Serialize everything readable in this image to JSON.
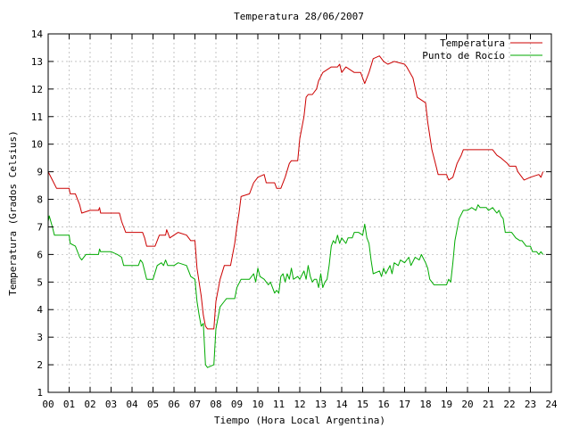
{
  "chart_data": {
    "type": "line",
    "title": "Temperatura 28/06/2007",
    "xlabel": "Tiempo (Hora Local Argentina)",
    "ylabel": "Temperatura (Grados Celsius)",
    "xlim": [
      0,
      24
    ],
    "ylim": [
      1,
      14
    ],
    "x_ticks": [
      "00",
      "01",
      "02",
      "03",
      "04",
      "05",
      "06",
      "07",
      "08",
      "09",
      "10",
      "11",
      "12",
      "13",
      "14",
      "15",
      "16",
      "17",
      "18",
      "19",
      "20",
      "21",
      "22",
      "23",
      "24"
    ],
    "y_ticks": [
      "1",
      "2",
      "3",
      "4",
      "5",
      "6",
      "7",
      "8",
      "9",
      "10",
      "11",
      "12",
      "13",
      "14"
    ],
    "grid": true,
    "legend_position": "top-right",
    "series": [
      {
        "name": "Temperatura",
        "color": "#cc0000",
        "points": [
          [
            0.0,
            9.0
          ],
          [
            0.2,
            8.7
          ],
          [
            0.4,
            8.4
          ],
          [
            1.0,
            8.4
          ],
          [
            1.05,
            8.2
          ],
          [
            1.3,
            8.2
          ],
          [
            1.5,
            7.8
          ],
          [
            1.6,
            7.5
          ],
          [
            2.0,
            7.6
          ],
          [
            2.4,
            7.6
          ],
          [
            2.45,
            7.7
          ],
          [
            2.5,
            7.5
          ],
          [
            3.0,
            7.5
          ],
          [
            3.4,
            7.5
          ],
          [
            3.5,
            7.2
          ],
          [
            3.6,
            7.0
          ],
          [
            3.7,
            6.8
          ],
          [
            4.0,
            6.8
          ],
          [
            4.5,
            6.8
          ],
          [
            4.6,
            6.6
          ],
          [
            4.7,
            6.3
          ],
          [
            5.0,
            6.3
          ],
          [
            5.1,
            6.3
          ],
          [
            5.2,
            6.5
          ],
          [
            5.3,
            6.7
          ],
          [
            5.6,
            6.7
          ],
          [
            5.65,
            6.9
          ],
          [
            5.8,
            6.6
          ],
          [
            6.0,
            6.7
          ],
          [
            6.2,
            6.8
          ],
          [
            6.6,
            6.7
          ],
          [
            6.8,
            6.5
          ],
          [
            7.0,
            6.5
          ],
          [
            7.1,
            5.5
          ],
          [
            7.3,
            4.5
          ],
          [
            7.4,
            3.8
          ],
          [
            7.5,
            3.4
          ],
          [
            7.6,
            3.3
          ],
          [
            7.9,
            3.3
          ],
          [
            8.0,
            4.3
          ],
          [
            8.2,
            5.1
          ],
          [
            8.4,
            5.6
          ],
          [
            8.7,
            5.6
          ],
          [
            8.9,
            6.4
          ],
          [
            9.0,
            7.0
          ],
          [
            9.1,
            7.5
          ],
          [
            9.2,
            8.1
          ],
          [
            9.6,
            8.2
          ],
          [
            9.8,
            8.6
          ],
          [
            10.0,
            8.8
          ],
          [
            10.3,
            8.9
          ],
          [
            10.4,
            8.6
          ],
          [
            10.8,
            8.6
          ],
          [
            10.9,
            8.4
          ],
          [
            11.1,
            8.4
          ],
          [
            11.3,
            8.8
          ],
          [
            11.5,
            9.3
          ],
          [
            11.6,
            9.4
          ],
          [
            11.9,
            9.4
          ],
          [
            12.0,
            10.2
          ],
          [
            12.2,
            11.0
          ],
          [
            12.3,
            11.7
          ],
          [
            12.4,
            11.8
          ],
          [
            12.6,
            11.8
          ],
          [
            12.8,
            12.0
          ],
          [
            12.9,
            12.3
          ],
          [
            13.1,
            12.6
          ],
          [
            13.5,
            12.8
          ],
          [
            13.8,
            12.8
          ],
          [
            13.9,
            12.9
          ],
          [
            14.0,
            12.6
          ],
          [
            14.2,
            12.8
          ],
          [
            14.6,
            12.6
          ],
          [
            14.9,
            12.6
          ],
          [
            15.0,
            12.4
          ],
          [
            15.1,
            12.2
          ],
          [
            15.3,
            12.6
          ],
          [
            15.5,
            13.1
          ],
          [
            15.8,
            13.2
          ],
          [
            16.0,
            13.0
          ],
          [
            16.2,
            12.9
          ],
          [
            16.5,
            13.0
          ],
          [
            17.0,
            12.9
          ],
          [
            17.1,
            12.8
          ],
          [
            17.4,
            12.4
          ],
          [
            17.6,
            11.7
          ],
          [
            17.8,
            11.6
          ],
          [
            18.0,
            11.5
          ],
          [
            18.1,
            10.8
          ],
          [
            18.3,
            9.8
          ],
          [
            18.5,
            9.2
          ],
          [
            18.6,
            8.9
          ],
          [
            19.0,
            8.9
          ],
          [
            19.1,
            8.7
          ],
          [
            19.3,
            8.8
          ],
          [
            19.5,
            9.3
          ],
          [
            19.7,
            9.6
          ],
          [
            19.8,
            9.8
          ],
          [
            20.0,
            9.8
          ],
          [
            21.2,
            9.8
          ],
          [
            21.4,
            9.6
          ],
          [
            21.6,
            9.5
          ],
          [
            21.9,
            9.3
          ],
          [
            22.0,
            9.2
          ],
          [
            22.3,
            9.2
          ],
          [
            22.4,
            9.0
          ],
          [
            22.6,
            8.8
          ],
          [
            22.7,
            8.7
          ],
          [
            23.0,
            8.8
          ],
          [
            23.4,
            8.9
          ],
          [
            23.5,
            8.8
          ],
          [
            23.6,
            9.0
          ]
        ]
      },
      {
        "name": "Punto de Rocío",
        "color": "#00aa00",
        "points": [
          [
            0.0,
            7.2
          ],
          [
            0.05,
            7.4
          ],
          [
            0.2,
            7.0
          ],
          [
            0.3,
            6.7
          ],
          [
            1.0,
            6.7
          ],
          [
            1.05,
            6.4
          ],
          [
            1.3,
            6.3
          ],
          [
            1.5,
            5.9
          ],
          [
            1.6,
            5.8
          ],
          [
            1.8,
            6.0
          ],
          [
            2.0,
            6.0
          ],
          [
            2.4,
            6.0
          ],
          [
            2.45,
            6.2
          ],
          [
            2.5,
            6.1
          ],
          [
            3.0,
            6.1
          ],
          [
            3.3,
            6.0
          ],
          [
            3.5,
            5.9
          ],
          [
            3.6,
            5.6
          ],
          [
            4.0,
            5.6
          ],
          [
            4.3,
            5.6
          ],
          [
            4.4,
            5.8
          ],
          [
            4.5,
            5.7
          ],
          [
            4.6,
            5.4
          ],
          [
            4.7,
            5.1
          ],
          [
            5.0,
            5.1
          ],
          [
            5.2,
            5.6
          ],
          [
            5.4,
            5.7
          ],
          [
            5.5,
            5.6
          ],
          [
            5.6,
            5.8
          ],
          [
            5.7,
            5.6
          ],
          [
            6.0,
            5.6
          ],
          [
            6.2,
            5.7
          ],
          [
            6.6,
            5.6
          ],
          [
            6.8,
            5.2
          ],
          [
            7.0,
            5.1
          ],
          [
            7.1,
            4.3
          ],
          [
            7.2,
            3.8
          ],
          [
            7.3,
            3.4
          ],
          [
            7.4,
            3.5
          ],
          [
            7.5,
            2.0
          ],
          [
            7.6,
            1.9
          ],
          [
            7.9,
            2.0
          ],
          [
            8.0,
            3.3
          ],
          [
            8.2,
            4.1
          ],
          [
            8.4,
            4.3
          ],
          [
            8.5,
            4.4
          ],
          [
            8.9,
            4.4
          ],
          [
            9.0,
            4.8
          ],
          [
            9.2,
            5.1
          ],
          [
            9.6,
            5.1
          ],
          [
            9.8,
            5.3
          ],
          [
            9.9,
            5.0
          ],
          [
            10.0,
            5.5
          ],
          [
            10.1,
            5.2
          ],
          [
            10.3,
            5.1
          ],
          [
            10.5,
            4.9
          ],
          [
            10.6,
            5.0
          ],
          [
            10.8,
            4.6
          ],
          [
            10.9,
            4.7
          ],
          [
            11.0,
            4.6
          ],
          [
            11.1,
            5.2
          ],
          [
            11.2,
            5.3
          ],
          [
            11.3,
            5.0
          ],
          [
            11.4,
            5.3
          ],
          [
            11.5,
            5.1
          ],
          [
            11.6,
            5.5
          ],
          [
            11.7,
            5.1
          ],
          [
            11.9,
            5.2
          ],
          [
            12.0,
            5.1
          ],
          [
            12.2,
            5.4
          ],
          [
            12.3,
            5.1
          ],
          [
            12.4,
            5.6
          ],
          [
            12.5,
            5.2
          ],
          [
            12.6,
            5.0
          ],
          [
            12.7,
            5.1
          ],
          [
            12.8,
            5.1
          ],
          [
            12.9,
            4.8
          ],
          [
            13.0,
            5.3
          ],
          [
            13.1,
            4.8
          ],
          [
            13.2,
            5.0
          ],
          [
            13.3,
            5.1
          ],
          [
            13.4,
            5.6
          ],
          [
            13.5,
            6.3
          ],
          [
            13.6,
            6.5
          ],
          [
            13.7,
            6.4
          ],
          [
            13.8,
            6.7
          ],
          [
            13.9,
            6.4
          ],
          [
            14.0,
            6.6
          ],
          [
            14.2,
            6.4
          ],
          [
            14.3,
            6.6
          ],
          [
            14.5,
            6.6
          ],
          [
            14.6,
            6.8
          ],
          [
            14.8,
            6.8
          ],
          [
            15.0,
            6.7
          ],
          [
            15.1,
            7.1
          ],
          [
            15.2,
            6.6
          ],
          [
            15.3,
            6.4
          ],
          [
            15.4,
            5.8
          ],
          [
            15.5,
            5.3
          ],
          [
            15.8,
            5.4
          ],
          [
            15.9,
            5.2
          ],
          [
            16.0,
            5.5
          ],
          [
            16.1,
            5.3
          ],
          [
            16.3,
            5.6
          ],
          [
            16.4,
            5.3
          ],
          [
            16.5,
            5.7
          ],
          [
            16.7,
            5.6
          ],
          [
            16.8,
            5.8
          ],
          [
            17.0,
            5.7
          ],
          [
            17.2,
            5.9
          ],
          [
            17.3,
            5.6
          ],
          [
            17.5,
            5.9
          ],
          [
            17.7,
            5.8
          ],
          [
            17.8,
            6.0
          ],
          [
            18.0,
            5.7
          ],
          [
            18.1,
            5.5
          ],
          [
            18.2,
            5.1
          ],
          [
            18.4,
            4.9
          ],
          [
            18.6,
            4.9
          ],
          [
            19.0,
            4.9
          ],
          [
            19.1,
            5.1
          ],
          [
            19.2,
            5.0
          ],
          [
            19.3,
            5.7
          ],
          [
            19.4,
            6.5
          ],
          [
            19.6,
            7.3
          ],
          [
            19.8,
            7.6
          ],
          [
            20.0,
            7.6
          ],
          [
            20.2,
            7.7
          ],
          [
            20.4,
            7.6
          ],
          [
            20.5,
            7.8
          ],
          [
            20.6,
            7.7
          ],
          [
            20.9,
            7.7
          ],
          [
            21.0,
            7.6
          ],
          [
            21.2,
            7.7
          ],
          [
            21.3,
            7.6
          ],
          [
            21.4,
            7.5
          ],
          [
            21.5,
            7.6
          ],
          [
            21.6,
            7.4
          ],
          [
            21.7,
            7.3
          ],
          [
            21.8,
            6.8
          ],
          [
            22.1,
            6.8
          ],
          [
            22.3,
            6.6
          ],
          [
            22.5,
            6.5
          ],
          [
            22.6,
            6.5
          ],
          [
            22.8,
            6.3
          ],
          [
            23.0,
            6.3
          ],
          [
            23.1,
            6.1
          ],
          [
            23.3,
            6.1
          ],
          [
            23.4,
            6.0
          ],
          [
            23.5,
            6.1
          ],
          [
            23.6,
            6.0
          ]
        ]
      }
    ]
  }
}
